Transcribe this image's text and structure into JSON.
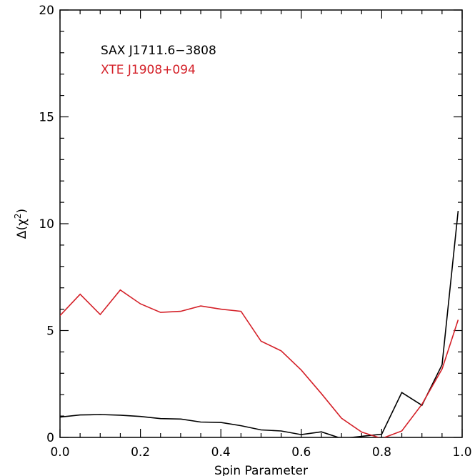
{
  "chart_data": {
    "type": "line",
    "xlabel": "Spin Parameter",
    "ylabel_prefix": "Δ(χ",
    "ylabel_power": "2",
    "ylabel_suffix": ")",
    "xlim": [
      0.0,
      1.0
    ],
    "ylim": [
      0,
      20
    ],
    "xticks": [
      0.0,
      0.2,
      0.4,
      0.6,
      0.8,
      1.0
    ],
    "xtick_labels": [
      "0.0",
      "0.2",
      "0.4",
      "0.6",
      "0.8",
      "1.0"
    ],
    "yticks": [
      0,
      5,
      10,
      15,
      20
    ],
    "ytick_labels": [
      "0",
      "5",
      "10",
      "15",
      "20"
    ],
    "grid": false,
    "legend_position": "top-left",
    "series": [
      {
        "name": "SAX J1711.6−3808",
        "color": "#000000",
        "x": [
          0.0,
          0.05,
          0.1,
          0.15,
          0.2,
          0.25,
          0.3,
          0.35,
          0.4,
          0.45,
          0.5,
          0.55,
          0.6,
          0.65,
          0.7,
          0.75,
          0.8,
          0.85,
          0.9,
          0.95,
          0.99
        ],
        "y": [
          0.95,
          1.05,
          1.07,
          1.04,
          0.98,
          0.88,
          0.86,
          0.72,
          0.7,
          0.55,
          0.35,
          0.3,
          0.13,
          0.26,
          -0.05,
          0.05,
          0.15,
          2.1,
          1.5,
          3.4,
          10.6
        ]
      },
      {
        "name": "XTE J1908+094",
        "color": "#d42028",
        "x": [
          0.0,
          0.05,
          0.1,
          0.15,
          0.2,
          0.25,
          0.3,
          0.35,
          0.4,
          0.45,
          0.5,
          0.55,
          0.6,
          0.65,
          0.7,
          0.75,
          0.8,
          0.85,
          0.9,
          0.95,
          0.99
        ],
        "y": [
          5.7,
          6.7,
          5.75,
          6.9,
          6.25,
          5.85,
          5.9,
          6.15,
          6.0,
          5.9,
          4.5,
          4.05,
          3.15,
          2.05,
          0.9,
          0.25,
          -0.05,
          0.3,
          1.55,
          3.2,
          5.5
        ]
      }
    ]
  }
}
